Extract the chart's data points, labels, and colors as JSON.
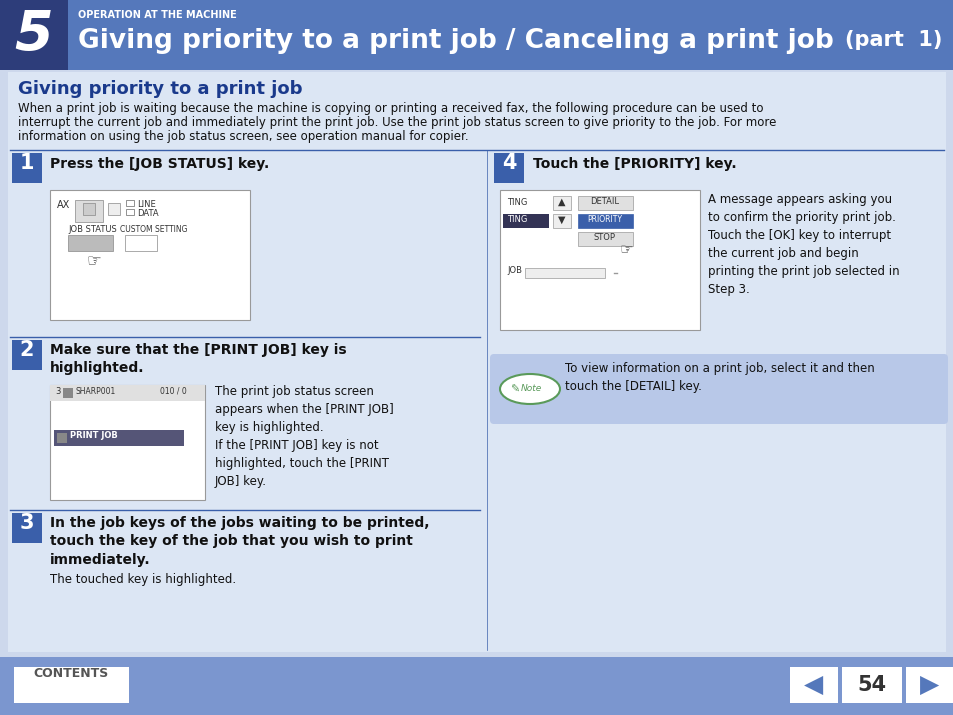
{
  "bg_color": "#cdd8ec",
  "header_bg": "#5578bb",
  "header_dark_bg": "#2d3d7a",
  "header_text_small": "OPERATION AT THE MACHINE",
  "header_number": "5",
  "header_title": "Giving priority to a print job / Canceling a print job",
  "header_part": "(part  1)",
  "section_title": "Giving priority to a print job",
  "section_title_color": "#1a3a8c",
  "body_text1": "When a print job is waiting because the machine is copying or printing a received fax, the following procedure can be used to",
  "body_text2": "interrupt the current job and immediately print the print job. Use the print job status screen to give priority to the job. For more",
  "body_text3": "information on using the job status screen, see operation manual for copier.",
  "step1_num": "1",
  "step1_title": "Press the [JOB STATUS] key.",
  "step2_num": "2",
  "step2_title": "Make sure that the [PRINT JOB] key is\nhighlighted.",
  "step2_body": "The print job status screen\nappears when the [PRINT JOB]\nkey is highlighted.\nIf the [PRINT JOB] key is not\nhighlighted, touch the [PRINT\nJOB] key.",
  "step3_num": "3",
  "step3_title": "In the job keys of the jobs waiting to be printed,\ntouch the key of the job that you wish to print\nimmediately.",
  "step3_body": "The touched key is highlighted.",
  "step4_num": "4",
  "step4_title": "Touch the [PRIORITY] key.",
  "step4_body": "A message appears asking you\nto confirm the priority print job.\nTouch the [OK] key to interrupt\nthe current job and begin\nprinting the print job selected in\nStep 3.",
  "note_text": "To view information on a print job, select it and then\ntouch the [DETAIL] key.",
  "note_bg": "#b8c8e8",
  "footer_bg": "#7b96cf",
  "footer_contents": "CONTENTS",
  "footer_page": "54",
  "step_num_bg": "#3a5faa",
  "divider_color": "#3a5faa",
  "content_bg": "#dce6f4",
  "white": "#ffffff"
}
